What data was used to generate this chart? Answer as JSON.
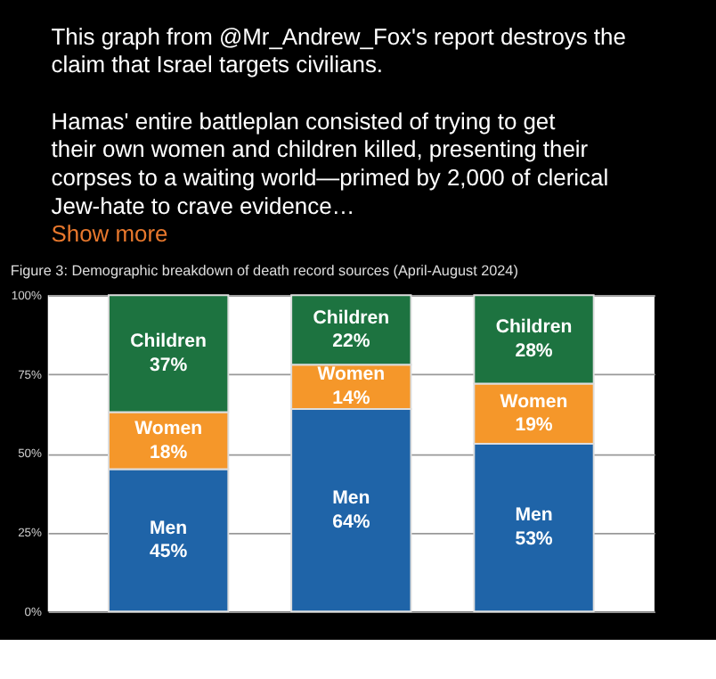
{
  "chart_data": {
    "type": "bar",
    "stacked": true,
    "title": "Figure 3: Demographic breakdown of death record sources (April-August 2024)",
    "annotations": [
      "This graph from @Mr_Andrew_Fox's report destroys the claim that Israel targets civilians.",
      "Hamas' entire battleplan consisted of trying to get their own women and children killed, presenting their corpses to a waiting world—primed by 2,000 of clerical Jew-hate to crave evidence…",
      "Show more"
    ],
    "categories": [
      null,
      null,
      null
    ],
    "series": [
      {
        "name": "Men",
        "color": "#1f64a8",
        "values": [
          45,
          64,
          53
        ],
        "value_labels": [
          "45%",
          "64%",
          "53%"
        ]
      },
      {
        "name": "Women",
        "color": "#f5972a",
        "values": [
          18,
          14,
          19
        ],
        "value_labels": [
          "18%",
          "14%",
          "19%"
        ]
      },
      {
        "name": "Children",
        "color": "#1d7340",
        "values": [
          37,
          22,
          28
        ],
        "value_labels": [
          "37%",
          "22%",
          "28%"
        ]
      }
    ],
    "ylim": [
      0,
      100
    ],
    "yticks": [
      {
        "value": 0,
        "label": "0%"
      },
      {
        "value": 25,
        "label": "25%"
      },
      {
        "value": 50,
        "label": "50%"
      },
      {
        "value": 75,
        "label": "75%"
      },
      {
        "value": 100,
        "label": "100%"
      }
    ],
    "grid": "y",
    "tick_labels": "y"
  }
}
